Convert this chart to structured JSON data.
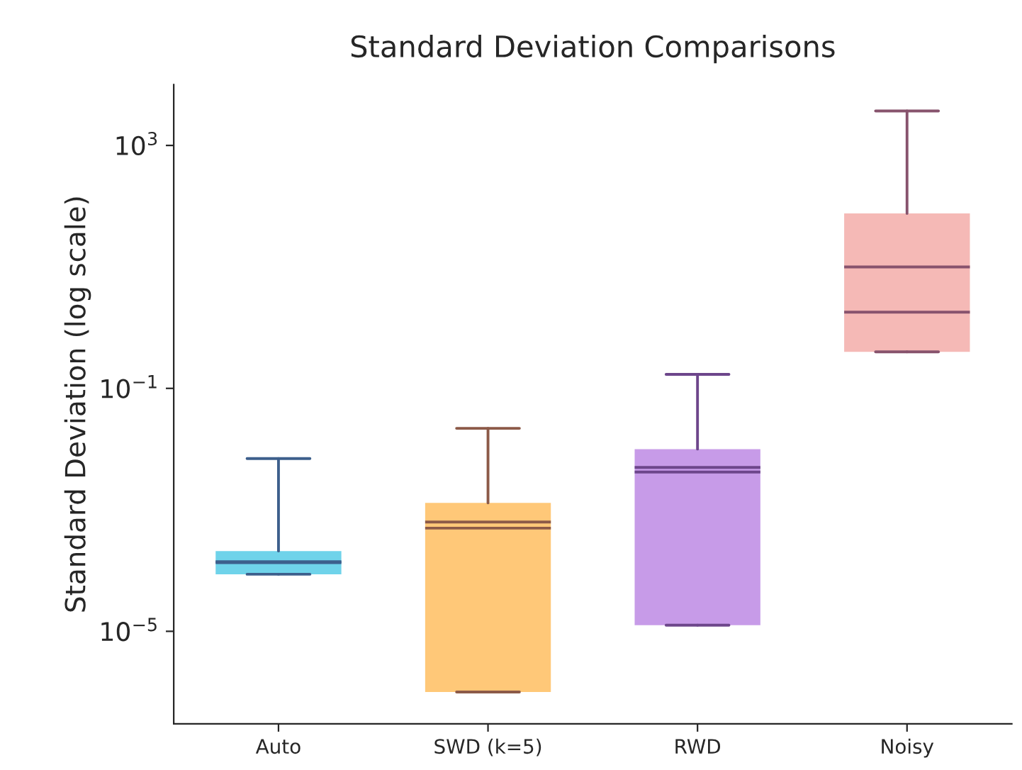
{
  "chart_data": {
    "type": "box",
    "title": "Standard Deviation Comparisons",
    "ylabel": "Standard Deviation (log scale)",
    "categories": [
      "Auto",
      "SWD (k=5)",
      "RWD",
      "Noisy"
    ],
    "boxes": [
      {
        "low": 8.7e-05,
        "q1": 8.7e-05,
        "median": 0.000135,
        "q3": 0.00021,
        "high": 0.007,
        "mean": 0.00014
      },
      {
        "low": 1e-06,
        "q1": 1e-06,
        "median": 0.0005,
        "q3": 0.0013,
        "high": 0.022,
        "mean": 0.00063
      },
      {
        "low": 1.26e-05,
        "q1": 1.26e-05,
        "median": 0.0042,
        "q3": 0.01,
        "high": 0.17,
        "mean": 0.005
      },
      {
        "low": 0.4,
        "q1": 0.4,
        "median": 1.8,
        "q3": 76,
        "high": 3700,
        "mean": 10
      }
    ],
    "colors": [
      "#6fd3ea",
      "#ffc878",
      "#c79be8",
      "#f5b9b6"
    ],
    "log": "y",
    "ylim": [
      3e-07,
      10000
    ],
    "yticks": [
      {
        "value": 1e-05,
        "label": "10$^{−5}$"
      },
      {
        "value": 0.1,
        "label": "10$^{−1}$"
      },
      {
        "value": 1000,
        "label": "10$^{3}$"
      }
    ],
    "grid": false
  }
}
